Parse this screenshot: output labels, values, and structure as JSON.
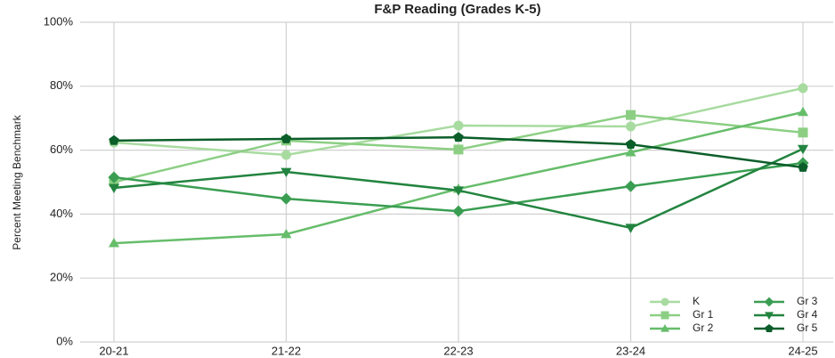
{
  "chart_data": {
    "type": "line",
    "title": "F&P Reading (Grades K-5)",
    "y_label": "Percent Meeting Benchmark",
    "categories": [
      "20-21",
      "21-22",
      "22-23",
      "23-24",
      "24-25"
    ],
    "series": [
      {
        "name": "K",
        "color": "#a8dba0",
        "marker": "circle",
        "values": [
          62.4,
          58.5,
          67.7,
          67.4,
          79.4
        ]
      },
      {
        "name": "Gr 1",
        "color": "#8ccf84",
        "marker": "square",
        "values": [
          50,
          63,
          60.2,
          71,
          65.5
        ]
      },
      {
        "name": "Gr 2",
        "color": "#66bd6a",
        "marker": "triangle-up",
        "values": [
          30.9,
          33.7,
          47.9,
          59.3,
          71.9
        ]
      },
      {
        "name": "Gr 3",
        "color": "#3a9e52",
        "marker": "diamond",
        "values": [
          51.5,
          44.8,
          40.9,
          48.7,
          56
        ]
      },
      {
        "name": "Gr 4",
        "color": "#22843f",
        "marker": "triangle-down",
        "values": [
          48.2,
          53.2,
          47.4,
          35.7,
          60.4
        ]
      },
      {
        "name": "Gr 5",
        "color": "#0b5e2a",
        "marker": "pentagon",
        "values": [
          63,
          63.5,
          64,
          61.8,
          54.6
        ]
      }
    ],
    "ylim": [
      0,
      100
    ],
    "yticks": [
      {
        "value": 0,
        "label": "0%"
      },
      {
        "value": 20,
        "label": "20%"
      },
      {
        "value": 40,
        "label": "40%"
      },
      {
        "value": 60,
        "label": "60%"
      },
      {
        "value": 80,
        "label": "80%"
      },
      {
        "value": 100,
        "label": "100%"
      }
    ],
    "grid": true,
    "legend": "lower right"
  }
}
